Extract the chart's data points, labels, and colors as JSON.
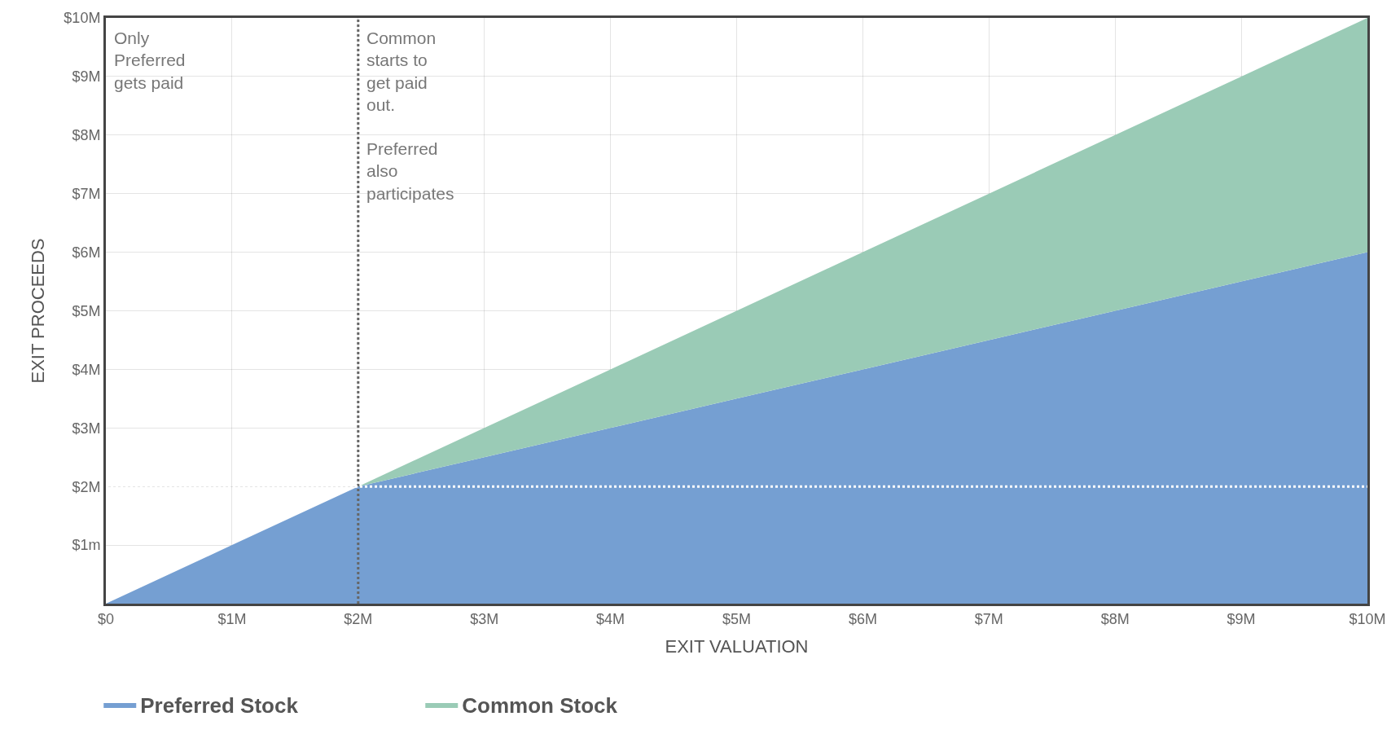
{
  "chart_data": {
    "type": "area",
    "stacked": true,
    "xlabel": "EXIT VALUATION",
    "ylabel": "EXIT PROCEEDS",
    "x": [
      0,
      1,
      2,
      3,
      4,
      5,
      6,
      7,
      8,
      9,
      10
    ],
    "series": [
      {
        "name": "Preferred Stock",
        "color": "#759fd2",
        "values": [
          0,
          1,
          2,
          2.5,
          3,
          3.5,
          4,
          4.5,
          5,
          5.5,
          6
        ]
      },
      {
        "name": "Common Stock",
        "color": "#9acbb6",
        "values": [
          0,
          0,
          0,
          0.5,
          1,
          1.5,
          2,
          2.5,
          3,
          3.5,
          4
        ]
      }
    ],
    "xlim": [
      0,
      10
    ],
    "xticks": [
      {
        "value": 0,
        "label": "$0"
      },
      {
        "value": 1,
        "label": "$1M"
      },
      {
        "value": 2,
        "label": "$2M"
      },
      {
        "value": 3,
        "label": "$3M"
      },
      {
        "value": 4,
        "label": "$4M"
      },
      {
        "value": 5,
        "label": "$5M"
      },
      {
        "value": 6,
        "label": "$6M"
      },
      {
        "value": 7,
        "label": "$7M"
      },
      {
        "value": 8,
        "label": "$8M"
      },
      {
        "value": 9,
        "label": "$9M"
      },
      {
        "value": 10,
        "label": "$10M"
      }
    ],
    "ylim": [
      0,
      10
    ],
    "yticks": [
      {
        "value": 1,
        "label": "$1m"
      },
      {
        "value": 2,
        "label": "$2M"
      },
      {
        "value": 3,
        "label": "$3M"
      },
      {
        "value": 4,
        "label": "$4M"
      },
      {
        "value": 5,
        "label": "$5M"
      },
      {
        "value": 6,
        "label": "$6M"
      },
      {
        "value": 7,
        "label": "$7M"
      },
      {
        "value": 8,
        "label": "$8M"
      },
      {
        "value": 9,
        "label": "$9M"
      },
      {
        "value": 10,
        "label": "$10M"
      }
    ],
    "ref_lines": [
      {
        "axis": "x",
        "value": 2,
        "color": "#666666",
        "line_style": "dotted"
      },
      {
        "axis": "y",
        "value": 2,
        "color": "#ffffff",
        "line_style": "dotted"
      }
    ],
    "annotations": [
      "Only Preferred gets paid",
      "Common starts to get paid out.",
      "Preferred also participates"
    ],
    "grid": true,
    "legend": "bottom left"
  }
}
